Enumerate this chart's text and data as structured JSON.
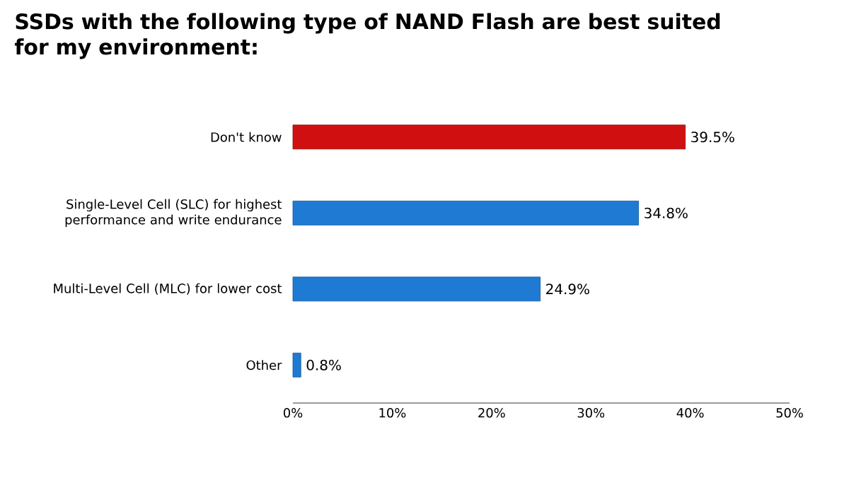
{
  "chart_data": {
    "type": "bar",
    "orientation": "horizontal",
    "title": "SSDs with the following type of NAND Flash are best suited for my environment:",
    "categories": [
      "Don't know",
      "Single-Level Cell (SLC) for highest performance and write endurance",
      "Multi-Level Cell (MLC) for lower cost",
      "Other"
    ],
    "values": [
      39.5,
      34.8,
      24.9,
      0.8
    ],
    "colors": [
      "#d01010",
      "#1f7ad4",
      "#1f7ad4",
      "#1f7ad4"
    ],
    "value_labels": [
      "39.5%",
      "34.8%",
      "24.9%",
      "0.8%"
    ],
    "xlim": [
      0,
      50
    ],
    "xticks": [
      {
        "value": 0,
        "label": "0%"
      },
      {
        "value": 10,
        "label": "10%"
      },
      {
        "value": 20,
        "label": "20%"
      },
      {
        "value": 30,
        "label": "30%"
      },
      {
        "value": 40,
        "label": "40%"
      },
      {
        "value": 50,
        "label": "50%"
      }
    ],
    "grid": false
  }
}
